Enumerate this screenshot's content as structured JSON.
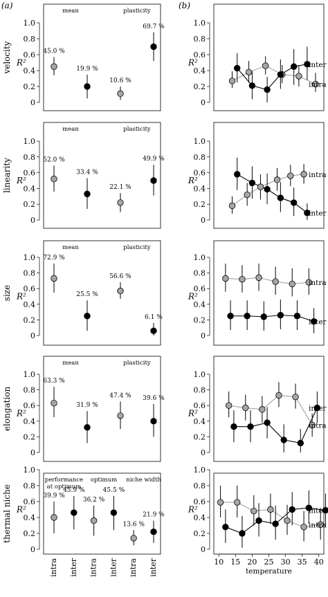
{
  "panel_labels": [
    "(a)",
    "(b)"
  ],
  "ylabel": "R²",
  "chart_data": [
    {
      "panel": "a",
      "row": "velocity",
      "type": "scatter",
      "ylim": [
        0,
        1.0
      ],
      "yticks": [
        "0",
        "0.2",
        "0.4",
        "0.6",
        "0.8",
        "1.0"
      ],
      "groups": [
        {
          "label": "mean",
          "points": [
            {
              "series": "intra",
              "y": 0.45,
              "lo": 0.34,
              "hi": 0.57,
              "pct": "45.0 %"
            },
            {
              "series": "inter",
              "y": 0.2,
              "lo": 0.05,
              "hi": 0.35,
              "pct": "19.9 %"
            }
          ]
        },
        {
          "label": "plasticity",
          "points": [
            {
              "series": "intra",
              "y": 0.11,
              "lo": 0.03,
              "hi": 0.2,
              "pct": "10.6 %"
            },
            {
              "series": "inter",
              "y": 0.7,
              "lo": 0.52,
              "hi": 0.88,
              "pct": "69.7 %"
            }
          ]
        }
      ]
    },
    {
      "panel": "a",
      "row": "linearity",
      "type": "scatter",
      "ylim": [
        0,
        1.0
      ],
      "yticks": [
        "0",
        "0.2",
        "0.4",
        "0.6",
        "0.8",
        "1.0"
      ],
      "groups": [
        {
          "label": "mean",
          "points": [
            {
              "series": "intra",
              "y": 0.52,
              "lo": 0.36,
              "hi": 0.69,
              "pct": "52.0 %"
            },
            {
              "series": "inter",
              "y": 0.33,
              "lo": 0.14,
              "hi": 0.53,
              "pct": "33.4 %"
            }
          ]
        },
        {
          "label": "plasticity",
          "points": [
            {
              "series": "intra",
              "y": 0.22,
              "lo": 0.1,
              "hi": 0.34,
              "pct": "22.1 %"
            },
            {
              "series": "inter",
              "y": 0.5,
              "lo": 0.31,
              "hi": 0.7,
              "pct": "49.9 %"
            }
          ]
        }
      ]
    },
    {
      "panel": "a",
      "row": "size",
      "type": "scatter",
      "ylim": [
        0,
        1.0
      ],
      "yticks": [
        "0",
        "0.2",
        "0.4",
        "0.6",
        "0.8",
        "1.0"
      ],
      "groups": [
        {
          "label": "mean",
          "points": [
            {
              "series": "intra",
              "y": 0.73,
              "lo": 0.55,
              "hi": 0.92,
              "pct": "72.9 %"
            },
            {
              "series": "inter",
              "y": 0.25,
              "lo": 0.06,
              "hi": 0.45,
              "pct": "25.5 %"
            }
          ]
        },
        {
          "label": "plasticity",
          "points": [
            {
              "series": "intra",
              "y": 0.57,
              "lo": 0.47,
              "hi": 0.68,
              "pct": "56.6 %"
            },
            {
              "series": "inter",
              "y": 0.06,
              "lo": 0.0,
              "hi": 0.16,
              "pct": "6.1 %"
            }
          ]
        }
      ]
    },
    {
      "panel": "a",
      "row": "elongation",
      "type": "scatter",
      "ylim": [
        0,
        1.0
      ],
      "yticks": [
        "0",
        "0.2",
        "0.4",
        "0.6",
        "0.8",
        "1.0"
      ],
      "groups": [
        {
          "label": "mean",
          "points": [
            {
              "series": "intra",
              "y": 0.63,
              "lo": 0.45,
              "hi": 0.84,
              "pct": "63.3 %"
            },
            {
              "series": "inter",
              "y": 0.32,
              "lo": 0.12,
              "hi": 0.53,
              "pct": "31.9 %"
            }
          ]
        },
        {
          "label": "plasticity",
          "points": [
            {
              "series": "intra",
              "y": 0.47,
              "lo": 0.3,
              "hi": 0.65,
              "pct": "47.4 %"
            },
            {
              "series": "inter",
              "y": 0.4,
              "lo": 0.2,
              "hi": 0.62,
              "pct": "39.6 %"
            }
          ]
        }
      ]
    },
    {
      "panel": "a",
      "row": "thermal niche",
      "type": "scatter",
      "ylim": [
        0,
        1.0
      ],
      "yticks": [
        "0",
        "0.2",
        "0.4",
        "0.6",
        "0.8",
        "1.0"
      ],
      "xtick_labels": [
        "intra",
        "inter"
      ],
      "groups": [
        {
          "label": "performance at optimum",
          "label_lines": [
            "performance",
            "at optimum"
          ],
          "points": [
            {
              "series": "intra",
              "y": 0.4,
              "lo": 0.2,
              "hi": 0.6,
              "pct": "39.9 %"
            },
            {
              "series": "inter",
              "y": 0.46,
              "lo": 0.25,
              "hi": 0.67,
              "pct": "45.9 %"
            }
          ]
        },
        {
          "label": "optimum",
          "points": [
            {
              "series": "intra",
              "y": 0.36,
              "lo": 0.17,
              "hi": 0.55,
              "pct": "36.2 %"
            },
            {
              "series": "inter",
              "y": 0.46,
              "lo": 0.24,
              "hi": 0.67,
              "pct": "45.5 %"
            }
          ]
        },
        {
          "label": "niche width",
          "points": [
            {
              "series": "intra",
              "y": 0.14,
              "lo": 0.05,
              "hi": 0.24,
              "pct": "13.6 %"
            },
            {
              "series": "inter",
              "y": 0.22,
              "lo": 0.08,
              "hi": 0.36,
              "pct": "21.9 %"
            }
          ]
        }
      ]
    },
    {
      "panel": "b",
      "row": "velocity",
      "type": "line",
      "ylim": [
        0,
        1.0
      ],
      "yticks": [
        "0",
        "0.2",
        "0.4",
        "0.6",
        "0.8",
        "1.0"
      ],
      "xlim": [
        8.5,
        41.5
      ],
      "series": [
        {
          "name": "intra",
          "color": "#9a9a9a",
          "x": [
            14,
            19,
            24,
            29,
            34,
            39
          ],
          "y": [
            0.27,
            0.38,
            0.46,
            0.35,
            0.33,
            0.23
          ],
          "lo": [
            0.18,
            0.25,
            0.35,
            0.24,
            0.2,
            0.13
          ],
          "hi": [
            0.39,
            0.52,
            0.58,
            0.47,
            0.47,
            0.37
          ]
        },
        {
          "name": "inter",
          "color": "#000000",
          "x": [
            15.5,
            20,
            24.5,
            28.5,
            32.5,
            36.5
          ],
          "y": [
            0.43,
            0.21,
            0.16,
            0.35,
            0.45,
            0.48
          ],
          "lo": [
            0.25,
            0.04,
            0.0,
            0.17,
            0.22,
            0.28
          ],
          "hi": [
            0.62,
            0.39,
            0.32,
            0.54,
            0.67,
            0.7
          ]
        }
      ],
      "labels": [
        {
          "text": "inter",
          "series": "inter"
        },
        {
          "text": "intra",
          "series": "intra"
        }
      ]
    },
    {
      "panel": "b",
      "row": "linearity",
      "type": "line",
      "ylim": [
        0,
        1.0
      ],
      "yticks": [
        "0",
        "0.2",
        "0.4",
        "0.6",
        "0.8",
        "1.0"
      ],
      "xlim": [
        8.5,
        41.5
      ],
      "series": [
        {
          "name": "intra",
          "color": "#9a9a9a",
          "x": [
            14,
            18.5,
            22.5,
            27.5,
            31.5,
            35.5
          ],
          "y": [
            0.18,
            0.32,
            0.42,
            0.51,
            0.56,
            0.58
          ],
          "lo": [
            0.08,
            0.18,
            0.26,
            0.37,
            0.43,
            0.46
          ],
          "hi": [
            0.3,
            0.47,
            0.58,
            0.66,
            0.7,
            0.71
          ]
        },
        {
          "name": "inter",
          "color": "#000000",
          "x": [
            15.5,
            20,
            24.5,
            28.5,
            32.5,
            36.5
          ],
          "y": [
            0.58,
            0.47,
            0.39,
            0.28,
            0.22,
            0.09
          ],
          "lo": [
            0.38,
            0.27,
            0.2,
            0.1,
            0.05,
            0.0
          ],
          "hi": [
            0.79,
            0.68,
            0.59,
            0.48,
            0.41,
            0.21
          ]
        }
      ],
      "labels": [
        {
          "text": "intra",
          "series": "intra"
        },
        {
          "text": "inter",
          "series": "inter"
        }
      ]
    },
    {
      "panel": "b",
      "row": "size",
      "type": "line",
      "ylim": [
        0,
        1.0
      ],
      "yticks": [
        "0",
        "0.2",
        "0.4",
        "0.6",
        "0.8",
        "1.0"
      ],
      "xlim": [
        8.5,
        41.5
      ],
      "series": [
        {
          "name": "intra",
          "color": "#9a9a9a",
          "x": [
            12,
            17,
            22,
            27,
            32,
            37
          ],
          "y": [
            0.73,
            0.72,
            0.74,
            0.69,
            0.66,
            0.68
          ],
          "lo": [
            0.56,
            0.55,
            0.57,
            0.52,
            0.5,
            0.52
          ],
          "hi": [
            0.92,
            0.9,
            0.92,
            0.88,
            0.86,
            0.86
          ]
        },
        {
          "name": "inter",
          "color": "#000000",
          "x": [
            13.5,
            18.5,
            23.5,
            28.5,
            33.5,
            38.5
          ],
          "y": [
            0.25,
            0.25,
            0.24,
            0.26,
            0.25,
            0.18
          ],
          "lo": [
            0.07,
            0.07,
            0.06,
            0.08,
            0.07,
            0.03
          ],
          "hi": [
            0.45,
            0.45,
            0.44,
            0.46,
            0.45,
            0.35
          ]
        }
      ],
      "labels": [
        {
          "text": "intra",
          "series": "intra"
        },
        {
          "text": "inter",
          "series": "inter"
        }
      ]
    },
    {
      "panel": "b",
      "row": "elongation",
      "type": "line",
      "ylim": [
        0,
        1.0
      ],
      "yticks": [
        "0",
        "0.2",
        "0.4",
        "0.6",
        "0.8",
        "1.0"
      ],
      "xlim": [
        8.5,
        41.5
      ],
      "series": [
        {
          "name": "intra",
          "color": "#9a9a9a",
          "x": [
            13,
            18,
            23,
            28,
            33,
            38
          ],
          "y": [
            0.6,
            0.57,
            0.55,
            0.73,
            0.71,
            0.35
          ],
          "lo": [
            0.45,
            0.41,
            0.38,
            0.58,
            0.56,
            0.2
          ],
          "hi": [
            0.78,
            0.74,
            0.72,
            0.9,
            0.88,
            0.5
          ]
        },
        {
          "name": "inter",
          "color": "#000000",
          "x": [
            14.5,
            19.5,
            24.5,
            29.5,
            34.5,
            39.5
          ],
          "y": [
            0.33,
            0.33,
            0.38,
            0.16,
            0.12,
            0.57
          ],
          "lo": [
            0.13,
            0.13,
            0.18,
            0.0,
            0.0,
            0.38
          ],
          "hi": [
            0.54,
            0.54,
            0.58,
            0.36,
            0.3,
            0.78
          ]
        }
      ],
      "labels": [
        {
          "text": "inter",
          "series": "inter"
        },
        {
          "text": "intra",
          "series": "intra"
        }
      ]
    },
    {
      "panel": "b",
      "row": "thermal niche",
      "type": "line",
      "ylim": [
        0,
        1.0
      ],
      "yticks": [
        "0",
        "0.2",
        "0.4",
        "0.6",
        "0.8",
        "1.0"
      ],
      "xlim": [
        8.5,
        41.5
      ],
      "xticks": [
        10,
        15,
        20,
        25,
        30,
        35,
        40
      ],
      "xlabel": "temperature",
      "series": [
        {
          "name": "intra",
          "color": "#9a9a9a",
          "x": [
            10.5,
            15.5,
            20.5,
            25.5,
            30.5,
            35.5,
            40.5
          ],
          "y": [
            0.59,
            0.59,
            0.48,
            0.5,
            0.36,
            0.28,
            0.31
          ],
          "lo": [
            0.4,
            0.4,
            0.3,
            0.32,
            0.18,
            0.1,
            0.12
          ],
          "hi": [
            0.8,
            0.8,
            0.68,
            0.7,
            0.56,
            0.48,
            0.52
          ]
        },
        {
          "name": "inter",
          "color": "#000000",
          "x": [
            12,
            17,
            22,
            27,
            32,
            37,
            42
          ],
          "y": [
            0.28,
            0.2,
            0.36,
            0.32,
            0.5,
            0.52,
            0.49
          ],
          "lo": [
            0.08,
            0.02,
            0.16,
            0.12,
            0.3,
            0.32,
            0.28
          ],
          "hi": [
            0.5,
            0.42,
            0.58,
            0.55,
            0.72,
            0.74,
            0.7
          ]
        }
      ],
      "labels": [
        {
          "text": "inter",
          "series": "inter"
        },
        {
          "text": "intra",
          "series": "intra"
        }
      ]
    }
  ]
}
